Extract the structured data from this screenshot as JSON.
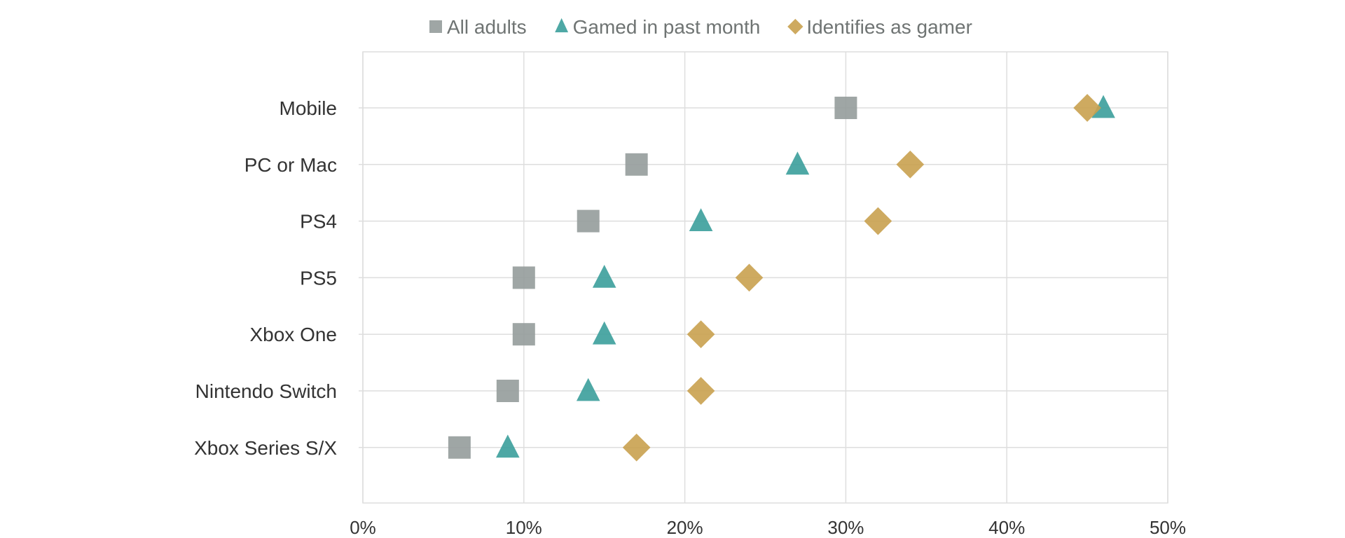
{
  "chart_data": {
    "type": "scatter",
    "title": "",
    "xlabel": "",
    "ylabel": "",
    "xlim": [
      0,
      50
    ],
    "x_ticks": [
      "0%",
      "10%",
      "20%",
      "30%",
      "40%",
      "50%"
    ],
    "x_tick_values": [
      0,
      10,
      20,
      30,
      40,
      50
    ],
    "grid": true,
    "legend_position": "top",
    "categories": [
      "Mobile",
      "PC or Mac",
      "PS4",
      "PS5",
      "Xbox One",
      "Nintendo Switch",
      "Xbox Series S/X"
    ],
    "series": [
      {
        "name": "All adults",
        "marker": "square",
        "color": "#959c9b",
        "values": [
          30,
          17,
          14,
          10,
          10,
          9,
          6
        ]
      },
      {
        "name": "Gamed in past month",
        "marker": "triangle",
        "color": "#3b9e9b",
        "values": [
          46,
          27,
          21,
          15,
          15,
          14,
          9
        ]
      },
      {
        "name": "Identifies as gamer",
        "marker": "diamond",
        "color": "#c9a14f",
        "values": [
          45,
          34,
          32,
          24,
          21,
          21,
          17
        ]
      }
    ]
  },
  "colors": {
    "grid": "#dedede",
    "frame": "#dedede",
    "label_text": "#333333",
    "legend_text": "#6f7473"
  }
}
